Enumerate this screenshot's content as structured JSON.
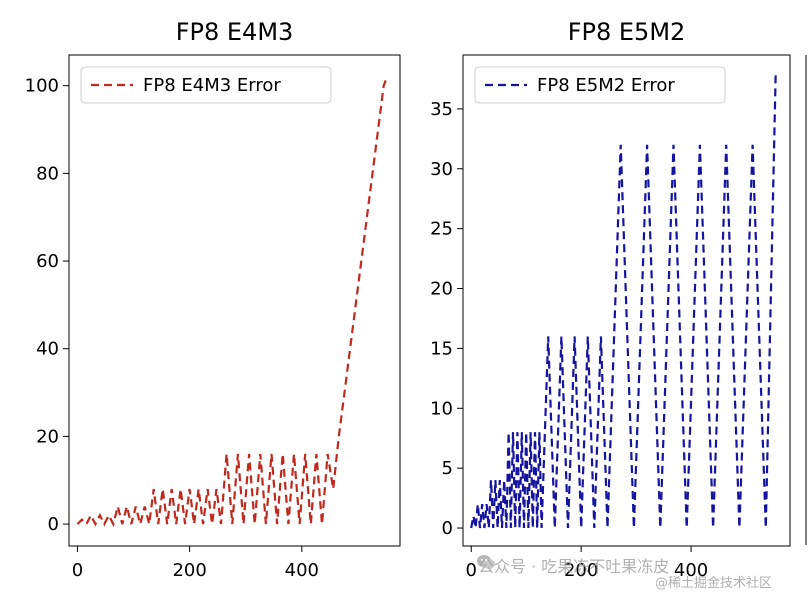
{
  "chart_data": [
    {
      "type": "line",
      "title": "FP8 E4M3",
      "xlim": [
        -15,
        575
      ],
      "ylim": [
        -5,
        107
      ],
      "xticks": [
        0,
        200,
        400
      ],
      "yticks": [
        0,
        20,
        40,
        60,
        80,
        100
      ],
      "legend": "upper-left",
      "series": [
        {
          "name": "FP8 E4M3 Error",
          "color": "#c0281c",
          "style": "dashed",
          "x": [
            0,
            8,
            16,
            24,
            32,
            40,
            48,
            56,
            64,
            72,
            80,
            88,
            96,
            104,
            112,
            120,
            128,
            136,
            144,
            152,
            160,
            168,
            176,
            184,
            192,
            200,
            208,
            216,
            224,
            232,
            240,
            248,
            256,
            266,
            276,
            286,
            296,
            306,
            316,
            326,
            336,
            346,
            356,
            366,
            376,
            386,
            396,
            406,
            416,
            426,
            436,
            446,
            456,
            466,
            476,
            486,
            496,
            506,
            516,
            526,
            536,
            546,
            552
          ],
          "y": [
            0,
            1,
            0,
            2,
            0,
            2,
            0,
            2,
            0,
            4,
            0,
            4,
            0,
            4,
            0,
            4,
            0,
            8,
            0,
            8,
            0,
            8,
            0,
            8,
            0,
            8,
            0,
            8,
            0,
            8,
            0,
            8,
            0,
            16,
            0,
            16,
            0,
            16,
            0,
            16,
            0,
            16,
            0,
            16,
            0,
            16,
            0,
            16,
            0,
            16,
            0,
            16,
            8,
            20,
            30,
            40,
            50,
            60,
            70,
            80,
            90,
            100,
            102
          ]
        }
      ]
    },
    {
      "type": "line",
      "title": "FP8 E5M2",
      "xlim": [
        -15,
        580
      ],
      "ylim": [
        -1.5,
        39.5
      ],
      "xticks": [
        0,
        200,
        400
      ],
      "yticks": [
        0,
        5,
        10,
        15,
        20,
        25,
        30,
        35
      ],
      "legend": "upper-left",
      "series": [
        {
          "name": "FP8 E5M2 Error",
          "color": "#1414a0",
          "style": "dashed",
          "x": [
            0,
            4,
            8,
            12,
            16,
            20,
            24,
            28,
            32,
            36,
            40,
            44,
            48,
            52,
            56,
            60,
            64,
            68,
            72,
            76,
            80,
            84,
            88,
            92,
            96,
            100,
            104,
            108,
            112,
            116,
            120,
            124,
            128,
            140,
            152,
            164,
            176,
            188,
            200,
            212,
            224,
            236,
            248,
            272,
            296,
            320,
            344,
            368,
            392,
            416,
            440,
            464,
            488,
            512,
            536,
            554
          ],
          "y": [
            0,
            1,
            0,
            2,
            0,
            2,
            0,
            2,
            0,
            4,
            0,
            4,
            0,
            4,
            0,
            4,
            0,
            8,
            0,
            8,
            0,
            8,
            0,
            8,
            0,
            8,
            0,
            8,
            0,
            8,
            0,
            8,
            0,
            16,
            0,
            16,
            0,
            16,
            0,
            16,
            0,
            16,
            0,
            32,
            0,
            32,
            0,
            32,
            0,
            32,
            0,
            32,
            0,
            32,
            0,
            38
          ]
        }
      ]
    }
  ],
  "watermark": {
    "line1": "公众号 · 吃果冻不吐果冻皮",
    "line2": "@稀土掘金技术社区"
  }
}
